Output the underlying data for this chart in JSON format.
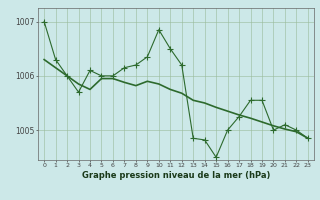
{
  "x": [
    0,
    1,
    2,
    3,
    4,
    5,
    6,
    7,
    8,
    9,
    10,
    11,
    12,
    13,
    14,
    15,
    16,
    17,
    18,
    19,
    20,
    21,
    22,
    23
  ],
  "series1": [
    1007.0,
    1006.3,
    1006.0,
    1005.7,
    1006.1,
    1006.0,
    1006.0,
    1006.15,
    1006.2,
    1006.35,
    1006.85,
    1006.5,
    1006.2,
    1004.85,
    1004.82,
    1004.5,
    1005.0,
    1005.25,
    1005.55,
    1005.55,
    1005.0,
    1005.1,
    1005.0,
    1004.85
  ],
  "series2": [
    1006.3,
    1006.15,
    1006.0,
    1005.85,
    1005.75,
    1005.95,
    1005.95,
    1005.88,
    1005.82,
    1005.9,
    1005.85,
    1005.75,
    1005.68,
    1005.55,
    1005.5,
    1005.42,
    1005.35,
    1005.28,
    1005.22,
    1005.15,
    1005.08,
    1005.02,
    1004.97,
    1004.85
  ],
  "ylim": [
    1004.45,
    1007.25
  ],
  "yticks": [
    1005,
    1006,
    1007
  ],
  "xticks": [
    0,
    1,
    2,
    3,
    4,
    5,
    6,
    7,
    8,
    9,
    10,
    11,
    12,
    13,
    14,
    15,
    16,
    17,
    18,
    19,
    20,
    21,
    22,
    23
  ],
  "xlabel": "Graphe pression niveau de la mer (hPa)",
  "line_color": "#2d6a2d",
  "bg_color": "#cce8e8",
  "grid_color": "#99bb99",
  "marker": "+",
  "linewidth": 0.8,
  "markersize": 4
}
